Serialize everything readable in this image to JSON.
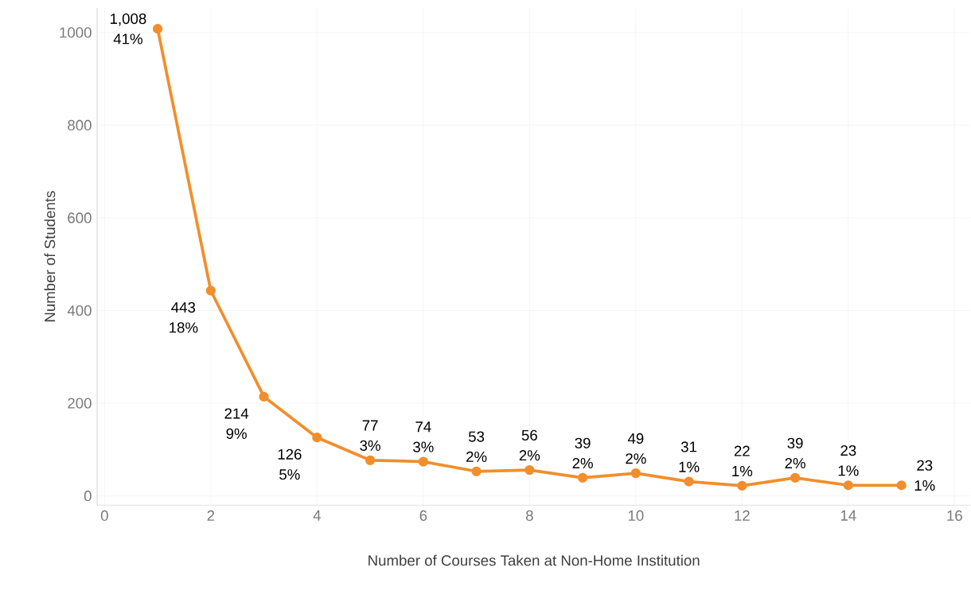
{
  "chart_data": {
    "type": "line",
    "xlabel": "Number of Courses Taken at Non-Home Institution",
    "ylabel": "Number of Students",
    "x": [
      1,
      2,
      3,
      4,
      5,
      6,
      7,
      8,
      9,
      10,
      11,
      12,
      13,
      14,
      15
    ],
    "values": [
      1008,
      443,
      214,
      126,
      77,
      74,
      53,
      56,
      39,
      49,
      31,
      22,
      39,
      23,
      23
    ],
    "value_labels": [
      "1,008 41%",
      "443 18%",
      "214 9%",
      "126 5%",
      "77 3%",
      "74 3%",
      "53 2%",
      "56 2%",
      "39 2%",
      "49 2%",
      "31 1%",
      "22 1%",
      "39 2%",
      "23 1%",
      "23 1%"
    ],
    "color": "#f28e2b",
    "marker": "circle",
    "line_style": "solid",
    "grid": true,
    "xlim": [
      -0.14,
      16.3
    ],
    "ylim": [
      -20,
      1053
    ],
    "xticks": [
      0,
      2,
      4,
      6,
      8,
      10,
      12,
      14,
      16
    ],
    "yticks": [
      0,
      200,
      400,
      600,
      800,
      1000
    ]
  }
}
